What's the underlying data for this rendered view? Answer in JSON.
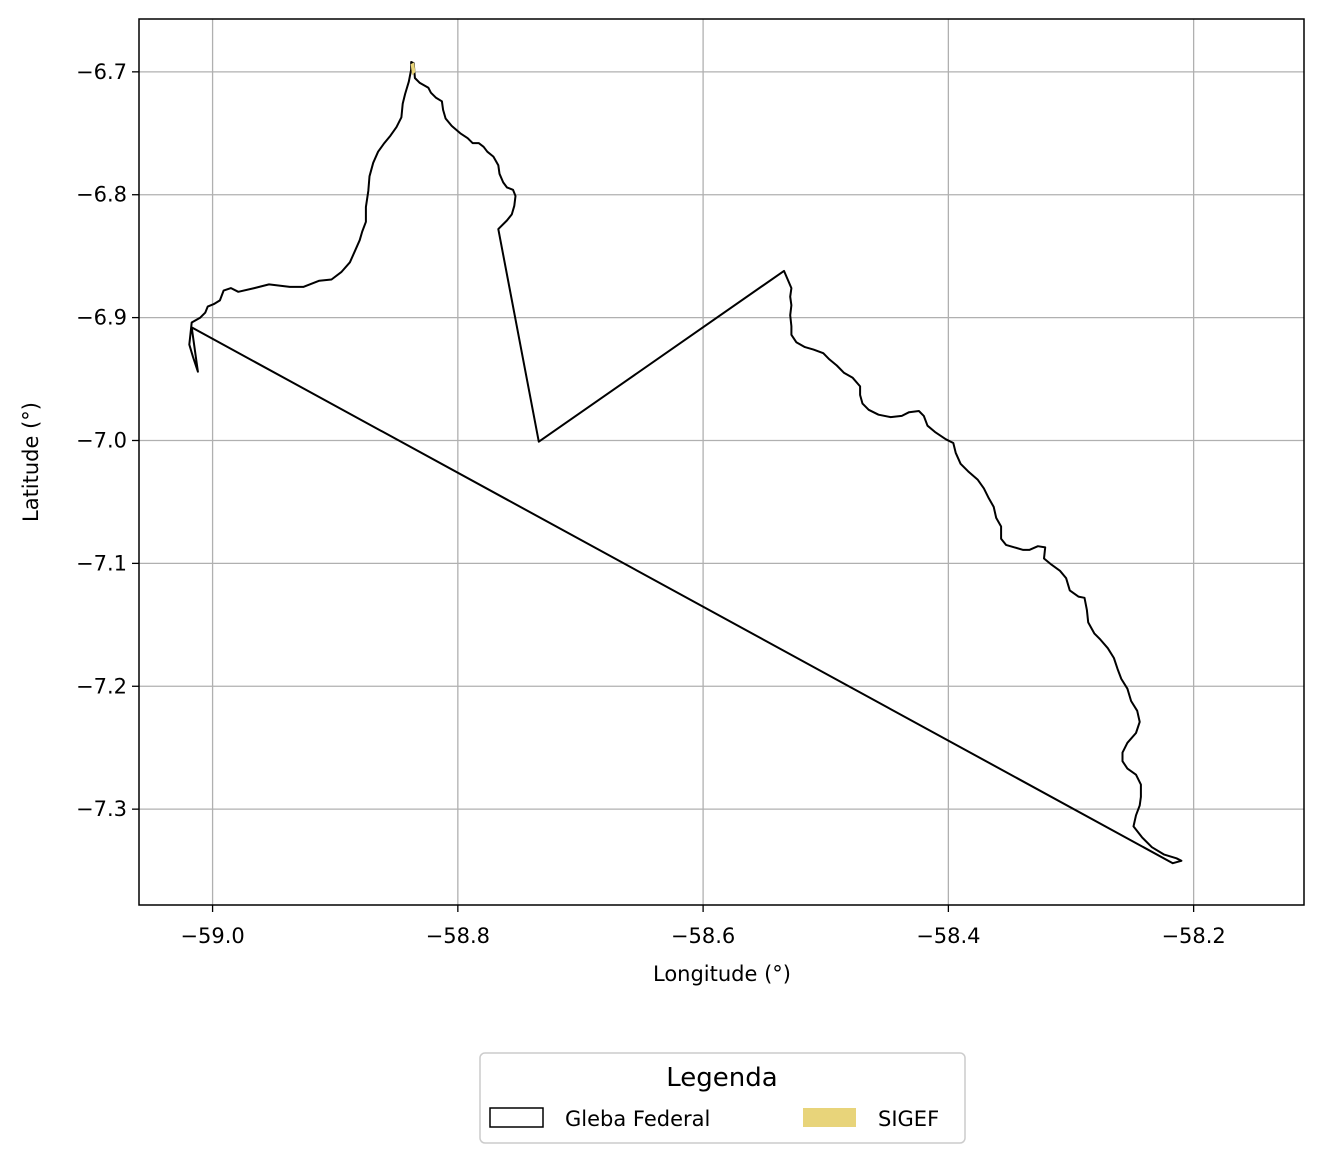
{
  "chart_data": {
    "type": "map",
    "title": "",
    "xlabel": "Longitude (°)",
    "ylabel": "Latitude (°)",
    "xlim": [
      -59.06,
      -58.11
    ],
    "ylim": [
      -7.378,
      -6.657
    ],
    "xticks": [
      -59.0,
      -58.8,
      -58.6,
      -58.4,
      -58.2
    ],
    "xtick_labels": [
      "−59.0",
      "−58.8",
      "−58.6",
      "−58.4",
      "−58.2"
    ],
    "yticks": [
      -6.7,
      -6.8,
      -6.9,
      -7.0,
      -7.1,
      -7.2,
      -7.3
    ],
    "ytick_labels": [
      "−6.7",
      "−6.8",
      "−6.9",
      "−7.0",
      "−7.1",
      "−7.2",
      "−7.3"
    ],
    "grid": true,
    "legend": {
      "title": "Legenda",
      "placement": "bottom-center",
      "entries": [
        {
          "label": "Gleba Federal",
          "style": "outline",
          "color": "#000000"
        },
        {
          "label": "SIGEF",
          "style": "fill",
          "color": "#e8d47a"
        }
      ]
    },
    "series": [
      {
        "name": "Gleba Federal",
        "style": "outline",
        "color": "#000000",
        "points": [
          [
            -59.012,
            -6.944
          ],
          [
            -59.016,
            -6.932
          ],
          [
            -59.019,
            -6.922
          ],
          [
            -59.018,
            -6.913
          ],
          [
            -59.017,
            -6.904
          ],
          [
            -59.01,
            -6.9
          ],
          [
            -59.006,
            -6.896
          ],
          [
            -59.004,
            -6.891
          ],
          [
            -58.999,
            -6.889
          ],
          [
            -58.994,
            -6.886
          ],
          [
            -58.991,
            -6.878
          ],
          [
            -58.985,
            -6.876
          ],
          [
            -58.979,
            -6.879
          ],
          [
            -58.966,
            -6.876
          ],
          [
            -58.954,
            -6.873
          ],
          [
            -58.937,
            -6.875
          ],
          [
            -58.926,
            -6.875
          ],
          [
            -58.913,
            -6.87
          ],
          [
            -58.903,
            -6.869
          ],
          [
            -58.895,
            -6.863
          ],
          [
            -58.888,
            -6.855
          ],
          [
            -58.884,
            -6.846
          ],
          [
            -58.88,
            -6.837
          ],
          [
            -58.878,
            -6.83
          ],
          [
            -58.875,
            -6.822
          ],
          [
            -58.875,
            -6.81
          ],
          [
            -58.873,
            -6.797
          ],
          [
            -58.872,
            -6.785
          ],
          [
            -58.869,
            -6.774
          ],
          [
            -58.865,
            -6.765
          ],
          [
            -58.86,
            -6.758
          ],
          [
            -58.855,
            -6.752
          ],
          [
            -58.85,
            -6.745
          ],
          [
            -58.846,
            -6.737
          ],
          [
            -58.845,
            -6.726
          ],
          [
            -58.843,
            -6.718
          ],
          [
            -58.84,
            -6.708
          ],
          [
            -58.838,
            -6.698
          ],
          [
            -58.838,
            -6.692
          ],
          [
            -58.836,
            -6.693
          ],
          [
            -58.835,
            -6.705
          ],
          [
            -58.831,
            -6.709
          ],
          [
            -58.824,
            -6.713
          ],
          [
            -58.822,
            -6.717
          ],
          [
            -58.818,
            -6.721
          ],
          [
            -58.813,
            -6.724
          ],
          [
            -58.812,
            -6.731
          ],
          [
            -58.81,
            -6.738
          ],
          [
            -58.805,
            -6.744
          ],
          [
            -58.798,
            -6.75
          ],
          [
            -58.792,
            -6.754
          ],
          [
            -58.788,
            -6.758
          ],
          [
            -58.783,
            -6.758
          ],
          [
            -58.779,
            -6.761
          ],
          [
            -58.776,
            -6.765
          ],
          [
            -58.771,
            -6.769
          ],
          [
            -58.767,
            -6.776
          ],
          [
            -58.766,
            -6.783
          ],
          [
            -58.763,
            -6.79
          ],
          [
            -58.76,
            -6.794
          ],
          [
            -58.755,
            -6.796
          ],
          [
            -58.753,
            -6.801
          ],
          [
            -58.754,
            -6.809
          ],
          [
            -58.756,
            -6.816
          ],
          [
            -58.76,
            -6.821
          ],
          [
            -58.767,
            -6.828
          ],
          [
            -58.734,
            -7.001
          ],
          [
            -58.534,
            -6.862
          ],
          [
            -58.531,
            -6.869
          ],
          [
            -58.528,
            -6.876
          ],
          [
            -58.529,
            -6.883
          ],
          [
            -58.528,
            -6.89
          ],
          [
            -58.529,
            -6.898
          ],
          [
            -58.528,
            -6.907
          ],
          [
            -58.528,
            -6.914
          ],
          [
            -58.524,
            -6.92
          ],
          [
            -58.517,
            -6.924
          ],
          [
            -58.51,
            -6.926
          ],
          [
            -58.502,
            -6.929
          ],
          [
            -58.497,
            -6.934
          ],
          [
            -58.491,
            -6.939
          ],
          [
            -58.485,
            -6.945
          ],
          [
            -58.478,
            -6.949
          ],
          [
            -58.472,
            -6.956
          ],
          [
            -58.472,
            -6.963
          ],
          [
            -58.47,
            -6.97
          ],
          [
            -58.465,
            -6.975
          ],
          [
            -58.457,
            -6.979
          ],
          [
            -58.447,
            -6.981
          ],
          [
            -58.438,
            -6.98
          ],
          [
            -58.432,
            -6.977
          ],
          [
            -58.424,
            -6.976
          ],
          [
            -58.42,
            -6.98
          ],
          [
            -58.417,
            -6.988
          ],
          [
            -58.411,
            -6.993
          ],
          [
            -58.402,
            -6.999
          ],
          [
            -58.396,
            -7.002
          ],
          [
            -58.394,
            -7.01
          ],
          [
            -58.39,
            -7.019
          ],
          [
            -58.384,
            -7.025
          ],
          [
            -58.376,
            -7.032
          ],
          [
            -58.371,
            -7.039
          ],
          [
            -58.367,
            -7.047
          ],
          [
            -58.363,
            -7.054
          ],
          [
            -58.361,
            -7.063
          ],
          [
            -58.357,
            -7.07
          ],
          [
            -58.357,
            -7.08
          ],
          [
            -58.353,
            -7.085
          ],
          [
            -58.346,
            -7.087
          ],
          [
            -58.339,
            -7.089
          ],
          [
            -58.334,
            -7.089
          ],
          [
            -58.327,
            -7.086
          ],
          [
            -58.321,
            -7.087
          ],
          [
            -58.322,
            -7.096
          ],
          [
            -58.316,
            -7.101
          ],
          [
            -58.309,
            -7.106
          ],
          [
            -58.304,
            -7.112
          ],
          [
            -58.301,
            -7.122
          ],
          [
            -58.294,
            -7.127
          ],
          [
            -58.289,
            -7.128
          ],
          [
            -58.287,
            -7.138
          ],
          [
            -58.286,
            -7.148
          ],
          [
            -58.281,
            -7.157
          ],
          [
            -58.276,
            -7.162
          ],
          [
            -58.27,
            -7.169
          ],
          [
            -58.265,
            -7.177
          ],
          [
            -58.262,
            -7.186
          ],
          [
            -58.259,
            -7.194
          ],
          [
            -58.254,
            -7.202
          ],
          [
            -58.251,
            -7.212
          ],
          [
            -58.246,
            -7.22
          ],
          [
            -58.244,
            -7.229
          ],
          [
            -58.247,
            -7.238
          ],
          [
            -58.254,
            -7.246
          ],
          [
            -58.258,
            -7.254
          ],
          [
            -58.258,
            -7.261
          ],
          [
            -58.254,
            -7.267
          ],
          [
            -58.247,
            -7.272
          ],
          [
            -58.243,
            -7.28
          ],
          [
            -58.243,
            -7.29
          ],
          [
            -58.244,
            -7.297
          ],
          [
            -58.247,
            -7.305
          ],
          [
            -58.249,
            -7.314
          ],
          [
            -58.242,
            -7.323
          ],
          [
            -58.234,
            -7.331
          ],
          [
            -58.224,
            -7.337
          ],
          [
            -58.214,
            -7.34
          ],
          [
            -58.21,
            -7.342
          ],
          [
            -58.217,
            -7.344
          ],
          [
            -59.017,
            -6.908
          ]
        ]
      },
      {
        "name": "SIGEF",
        "style": "fill",
        "color": "#e8d47a",
        "points": [
          [
            -58.838,
            -6.694
          ],
          [
            -58.836,
            -6.693
          ],
          [
            -58.835,
            -6.7
          ],
          [
            -58.837,
            -6.702
          ]
        ]
      }
    ]
  }
}
